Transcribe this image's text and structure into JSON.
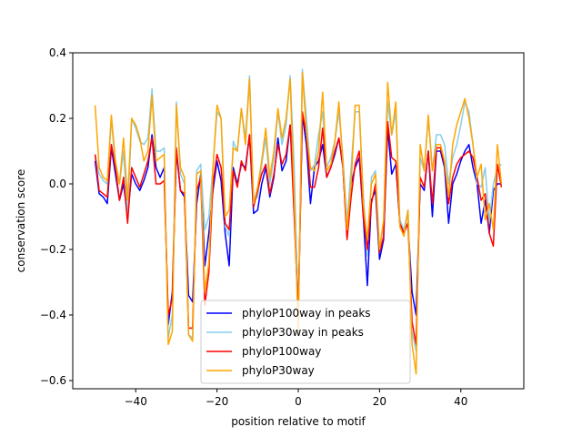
{
  "chart_data": {
    "type": "line",
    "xlabel": "position relative to motif",
    "ylabel": "conservation score",
    "xlim": [
      -55.5,
      55.5
    ],
    "ylim": [
      -0.625,
      0.4
    ],
    "xticks": [
      -40,
      -20,
      0,
      20,
      40
    ],
    "yticks": [
      -0.6,
      -0.4,
      -0.2,
      0.0,
      0.2,
      0.4
    ],
    "xtick_labels": [
      "−40",
      "−20",
      "0",
      "20",
      "40"
    ],
    "ytick_labels": [
      "−0.6",
      "−0.4",
      "−0.2",
      "0.0",
      "0.2",
      "0.4"
    ],
    "grid": false,
    "legend_position": "lower center",
    "x_start": -50,
    "series": [
      {
        "name": "phyloP100way in peaks",
        "color": "#0000ff",
        "values": [
          0.07,
          -0.03,
          -0.04,
          -0.06,
          0.11,
          0.03,
          -0.05,
          0.0,
          -0.1,
          0.03,
          0.0,
          -0.02,
          0.01,
          0.05,
          0.15,
          0.05,
          0.02,
          0.05,
          -0.43,
          -0.33,
          0.1,
          -0.02,
          -0.04,
          -0.34,
          -0.36,
          -0.06,
          0.03,
          -0.25,
          -0.15,
          -0.02,
          0.07,
          0.01,
          -0.15,
          -0.25,
          0.05,
          0.0,
          0.06,
          0.05,
          0.15,
          -0.09,
          -0.08,
          0.0,
          0.05,
          -0.04,
          0.02,
          0.14,
          0.04,
          0.07,
          0.18,
          0.0,
          -0.39,
          0.21,
          0.12,
          -0.06,
          0.05,
          0.07,
          0.12,
          0.02,
          0.05,
          0.09,
          0.14,
          0.05,
          -0.16,
          0.0,
          0.05,
          0.08,
          -0.1,
          -0.31,
          -0.05,
          -0.02,
          -0.23,
          -0.17,
          0.17,
          0.03,
          0.06,
          -0.12,
          -0.15,
          -0.12,
          -0.33,
          -0.4,
          0.0,
          -0.02,
          0.1,
          -0.1,
          0.1,
          0.1,
          0.05,
          -0.12,
          0.0,
          0.03,
          0.07,
          0.1,
          0.12,
          0.05,
          0.0,
          -0.12,
          -0.05,
          -0.15,
          -0.02,
          0.0,
          0.0
        ]
      },
      {
        "name": "phyloP30way in peaks",
        "color": "#87ceeb",
        "values": [
          0.09,
          0.03,
          0.01,
          0.0,
          0.2,
          0.05,
          0.0,
          0.1,
          -0.1,
          0.2,
          0.17,
          0.13,
          0.12,
          0.14,
          0.29,
          0.1,
          0.1,
          0.11,
          -0.47,
          -0.4,
          0.25,
          0.03,
          0.0,
          -0.46,
          -0.47,
          0.04,
          0.06,
          -0.14,
          -0.1,
          0.05,
          0.22,
          0.2,
          -0.13,
          -0.16,
          0.13,
          0.1,
          0.23,
          0.14,
          0.33,
          -0.05,
          -0.04,
          0.06,
          0.14,
          0.0,
          0.08,
          0.22,
          0.12,
          0.18,
          0.33,
          0.05,
          -0.42,
          0.35,
          0.2,
          0.04,
          0.06,
          0.15,
          0.22,
          0.05,
          0.08,
          0.13,
          0.22,
          0.08,
          -0.12,
          0.05,
          0.22,
          0.22,
          -0.03,
          -0.22,
          0.02,
          0.04,
          -0.2,
          -0.12,
          0.25,
          0.15,
          0.22,
          -0.11,
          -0.14,
          -0.08,
          -0.45,
          -0.51,
          0.08,
          0.04,
          0.2,
          0.04,
          0.15,
          0.15,
          0.12,
          0.0,
          0.08,
          0.12,
          0.18,
          0.25,
          0.22,
          0.12,
          0.0,
          -0.01,
          0.05,
          -0.12,
          0.0,
          0.05,
          0.06
        ]
      },
      {
        "name": "phyloP100way",
        "color": "#ff0000",
        "values": [
          0.09,
          -0.02,
          -0.03,
          -0.04,
          0.12,
          0.05,
          -0.05,
          0.02,
          -0.12,
          0.05,
          0.02,
          -0.01,
          0.03,
          0.07,
          0.14,
          0.0,
          0.0,
          0.01,
          -0.4,
          -0.35,
          0.11,
          -0.02,
          -0.03,
          -0.44,
          -0.44,
          -0.02,
          0.02,
          -0.37,
          -0.27,
          0.0,
          0.09,
          0.05,
          -0.12,
          -0.14,
          0.04,
          -0.01,
          0.07,
          0.04,
          0.15,
          -0.07,
          -0.02,
          0.03,
          0.06,
          -0.03,
          0.03,
          0.12,
          0.06,
          0.09,
          0.18,
          -0.1,
          -0.4,
          0.22,
          0.15,
          -0.01,
          -0.01,
          0.05,
          0.17,
          0.02,
          0.05,
          0.1,
          0.14,
          0.05,
          -0.17,
          -0.04,
          0.06,
          0.1,
          -0.1,
          -0.2,
          -0.06,
          0.0,
          -0.21,
          -0.16,
          0.19,
          0.08,
          0.07,
          -0.12,
          -0.15,
          -0.12,
          -0.42,
          -0.49,
          0.02,
          -0.01,
          0.1,
          -0.06,
          0.11,
          0.11,
          0.06,
          -0.06,
          0.02,
          0.06,
          0.08,
          0.09,
          0.1,
          0.08,
          0.02,
          -0.05,
          -0.03,
          -0.15,
          -0.19,
          0.06,
          -0.01
        ]
      },
      {
        "name": "phyloP30way",
        "color": "#ffa500",
        "values": [
          0.24,
          0.05,
          0.02,
          0.01,
          0.21,
          0.07,
          0.0,
          0.14,
          -0.05,
          0.2,
          0.18,
          0.14,
          0.07,
          0.1,
          0.27,
          0.07,
          0.08,
          0.09,
          -0.49,
          -0.45,
          0.24,
          0.05,
          0.02,
          -0.46,
          -0.48,
          0.03,
          0.04,
          -0.33,
          -0.24,
          0.05,
          0.24,
          0.2,
          -0.1,
          -0.08,
          0.11,
          0.1,
          0.23,
          0.12,
          0.32,
          -0.06,
          -0.01,
          0.07,
          0.17,
          0.02,
          0.1,
          0.23,
          0.14,
          0.2,
          0.32,
          -0.04,
          -0.46,
          0.34,
          0.16,
          0.05,
          0.04,
          0.1,
          0.28,
          0.04,
          0.06,
          0.13,
          0.25,
          0.06,
          -0.14,
          0.0,
          0.24,
          0.24,
          -0.06,
          -0.17,
          0.0,
          0.03,
          -0.2,
          -0.11,
          0.31,
          0.15,
          0.25,
          -0.13,
          -0.16,
          -0.08,
          -0.49,
          -0.58,
          0.12,
          0.04,
          0.21,
          0.04,
          0.12,
          0.12,
          0.07,
          -0.04,
          0.12,
          0.18,
          0.22,
          0.26,
          0.2,
          0.12,
          0.02,
          0.06,
          -0.11,
          -0.06,
          -0.14,
          0.12,
          0.0
        ]
      }
    ]
  }
}
